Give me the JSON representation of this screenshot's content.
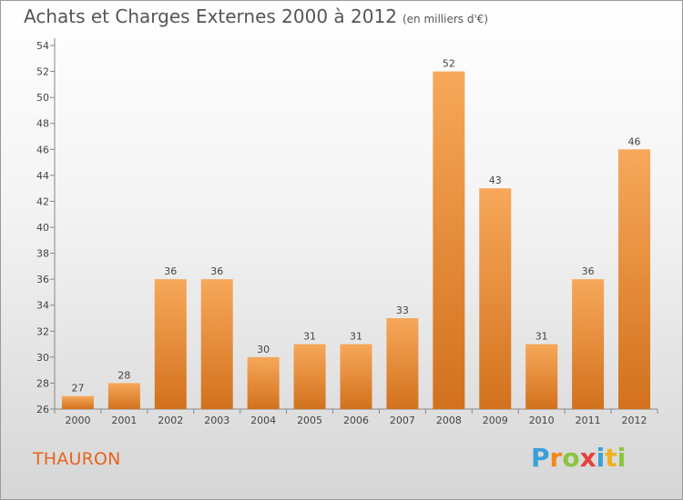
{
  "title": "Achats et Charges Externes 2000 à 2012",
  "subtitle": "(en milliers d'€)",
  "commune": "THAURON",
  "logo_text": "Proxiti",
  "colors": {
    "bar_top": "#f7a85a",
    "bar_bottom": "#d2711d",
    "commune": "#e8641e"
  },
  "chart_data": {
    "type": "bar",
    "categories": [
      "2000",
      "2001",
      "2002",
      "2003",
      "2004",
      "2005",
      "2006",
      "2007",
      "2008",
      "2009",
      "2010",
      "2011",
      "2012"
    ],
    "values": [
      27,
      28,
      36,
      36,
      30,
      31,
      31,
      33,
      52,
      43,
      31,
      36,
      46
    ],
    "ylim": [
      26,
      54
    ],
    "yticks": [
      26,
      28,
      30,
      32,
      34,
      36,
      38,
      40,
      42,
      44,
      46,
      48,
      50,
      52,
      54
    ],
    "grid": false,
    "data_labels": true
  }
}
